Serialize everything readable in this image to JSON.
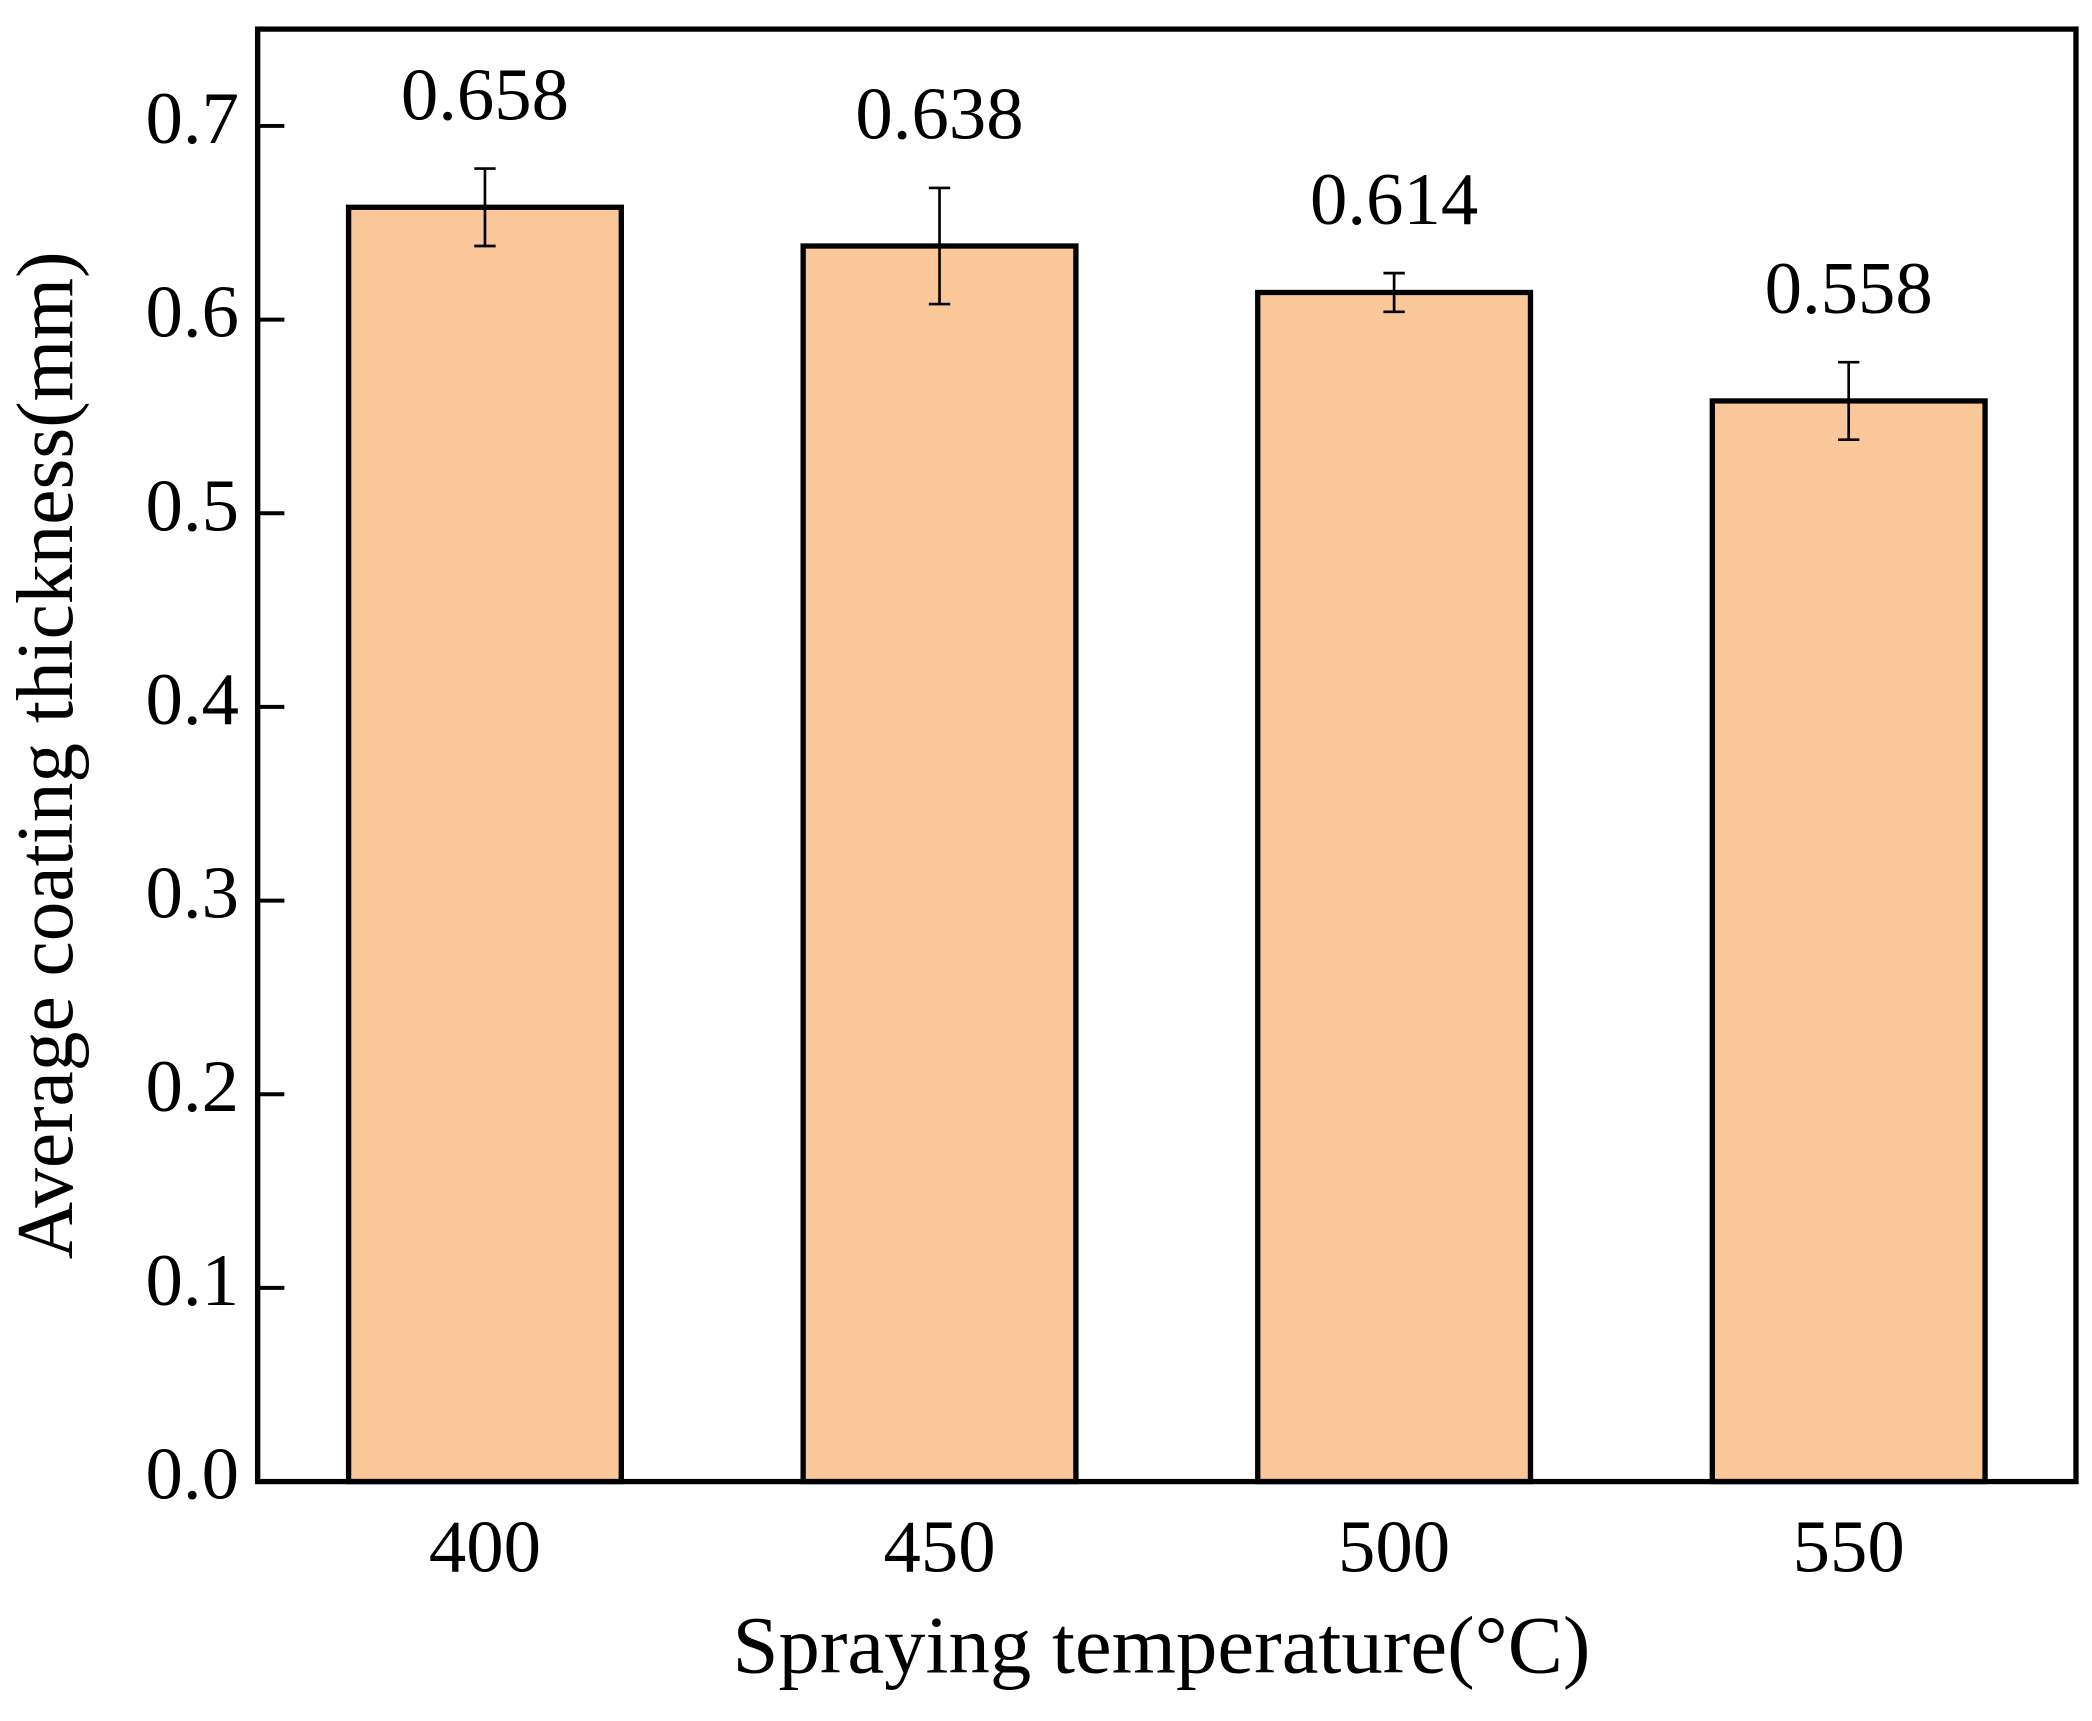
{
  "chart_data": {
    "type": "bar",
    "x_label": "Spraying temperature(°C)",
    "y_label": "Average coating thickness(mm)",
    "categories": [
      "400",
      "450",
      "500",
      "550"
    ],
    "values": [
      0.658,
      0.638,
      0.614,
      0.558
    ],
    "errors": [
      0.02,
      0.03,
      0.01,
      0.02
    ],
    "color": "#fac898",
    "ylim": [
      0,
      0.75
    ],
    "yticks": [
      {
        "value": 0,
        "label": "0.0"
      },
      0.1,
      0.2,
      0.3,
      0.4,
      0.5,
      0.6,
      0.7
    ],
    "grid": false
  }
}
